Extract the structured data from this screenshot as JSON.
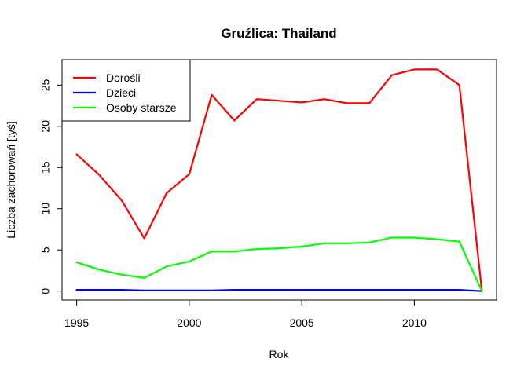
{
  "chart_data": {
    "type": "line",
    "title": "Gruźlica: Thailand",
    "xlabel": "Rok",
    "ylabel": "Liczba zachorowań [tyś]",
    "xlim": [
      1994.35,
      2013.65
    ],
    "ylim": [
      -1.08,
      28.08
    ],
    "xticks": [
      1995,
      2000,
      2005,
      2010
    ],
    "yticks": [
      0,
      5,
      10,
      15,
      20,
      25
    ],
    "grid": false,
    "legend_position": "top-left",
    "x": [
      1995,
      1996,
      1997,
      1998,
      1999,
      2000,
      2001,
      2002,
      2003,
      2004,
      2005,
      2006,
      2007,
      2008,
      2009,
      2010,
      2011,
      2012,
      2013
    ],
    "series": [
      {
        "name": "Dorośli",
        "color": "#ff0000",
        "values": [
          16.6,
          14.1,
          11.0,
          6.4,
          11.9,
          14.2,
          23.8,
          20.7,
          23.3,
          23.1,
          22.9,
          23.3,
          22.8,
          22.8,
          26.2,
          26.9,
          26.9,
          25.0,
          0.0
        ]
      },
      {
        "name": "Dzieci",
        "color": "#0000ff",
        "values": [
          0.15,
          0.15,
          0.15,
          0.08,
          0.08,
          0.08,
          0.08,
          0.15,
          0.15,
          0.15,
          0.15,
          0.15,
          0.15,
          0.15,
          0.15,
          0.15,
          0.15,
          0.15,
          0.0
        ]
      },
      {
        "name": "Osoby starsze",
        "color": "#00ff00",
        "values": [
          3.5,
          2.6,
          2.0,
          1.6,
          3.0,
          3.6,
          4.8,
          4.8,
          5.1,
          5.2,
          5.4,
          5.8,
          5.8,
          5.9,
          6.5,
          6.5,
          6.3,
          6.0,
          0.0
        ]
      }
    ]
  }
}
